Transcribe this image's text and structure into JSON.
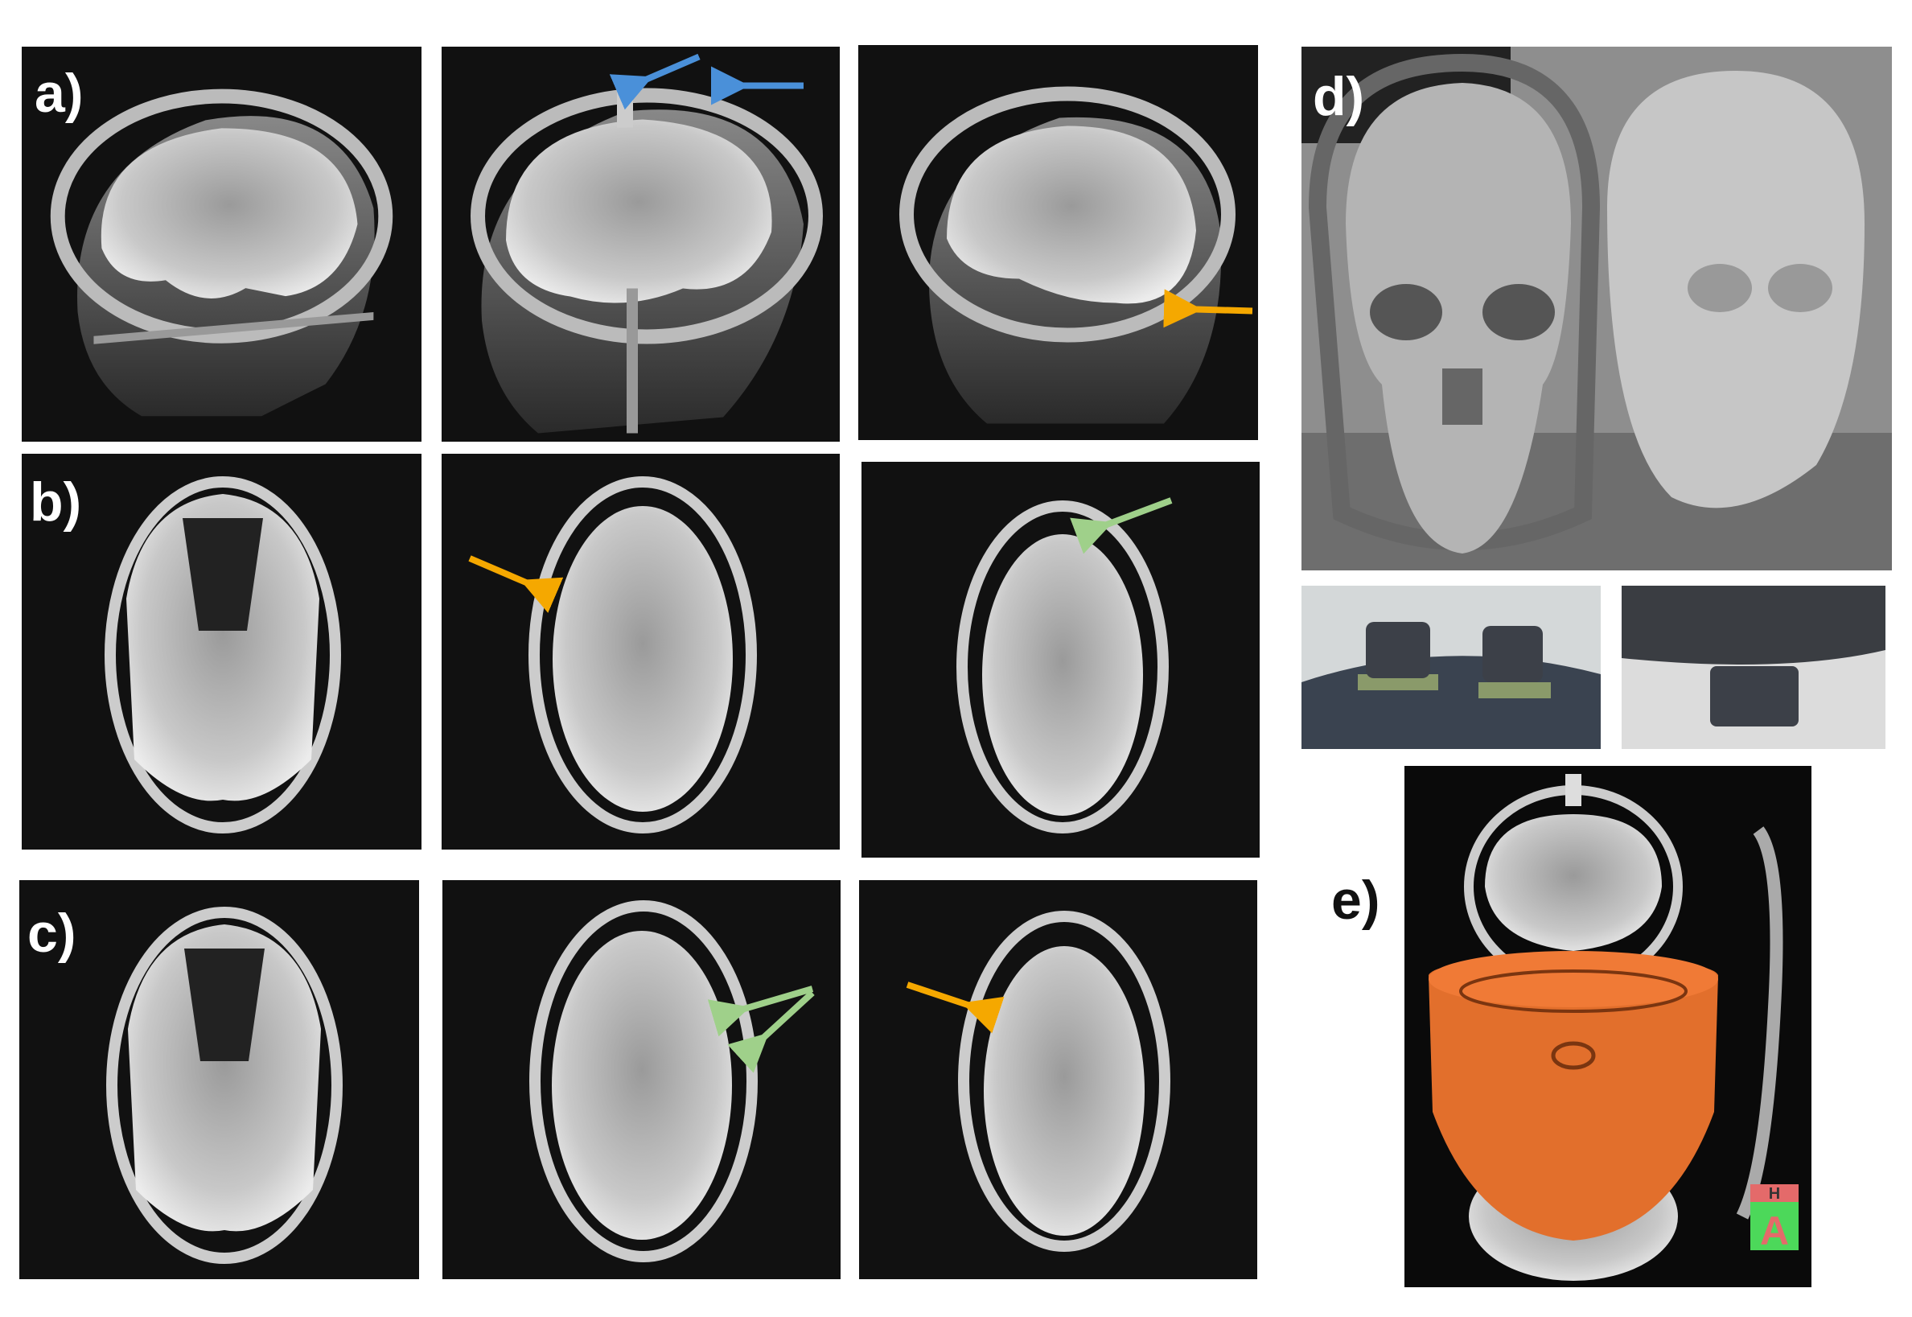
{
  "figure": {
    "panel_labels": {
      "a": "a)",
      "b": "b)",
      "c": "c)",
      "d": "d)",
      "e": "e)"
    },
    "orientation_cube": {
      "top": "H",
      "front": "A"
    },
    "arrow_colors": {
      "blue": "#4a90d9",
      "orange": "#f5a800",
      "green": "#9fd08a"
    },
    "render_color": "#f07a36"
  }
}
